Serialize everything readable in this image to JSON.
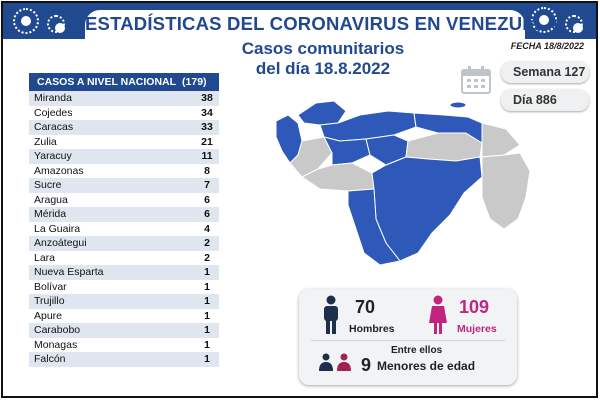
{
  "header": {
    "title": "ESTADÍSTICAS DEL CORONAVIRUS EN VENEZUELA",
    "date": "FECHA 18/8/2022"
  },
  "subtitle": {
    "line1": "Casos comunitarios",
    "line2": "del día 18.8.2022"
  },
  "table": {
    "heading": "CASOS A NIVEL NACIONAL",
    "total": "(179)",
    "rows": [
      {
        "state": "Miranda",
        "value": "38"
      },
      {
        "state": "Cojedes",
        "value": "34"
      },
      {
        "state": "Caracas",
        "value": "33"
      },
      {
        "state": "Zulia",
        "value": "21"
      },
      {
        "state": "Yaracuy",
        "value": "11"
      },
      {
        "state": "Amazonas",
        "value": "8"
      },
      {
        "state": "Sucre",
        "value": "7"
      },
      {
        "state": "Aragua",
        "value": "6"
      },
      {
        "state": "Mérida",
        "value": "6"
      },
      {
        "state": "La Guaira",
        "value": "4"
      },
      {
        "state": "Anzoátegui",
        "value": "2"
      },
      {
        "state": "Lara",
        "value": "2"
      },
      {
        "state": "Nueva Esparta",
        "value": "1"
      },
      {
        "state": "Bolívar",
        "value": "1"
      },
      {
        "state": "Trujillo",
        "value": "1"
      },
      {
        "state": "Apure",
        "value": "1"
      },
      {
        "state": "Carabobo",
        "value": "1"
      },
      {
        "state": "Monagas",
        "value": "1"
      },
      {
        "state": "Falcón",
        "value": "1"
      }
    ]
  },
  "info": {
    "week": "Semana 127",
    "day": "Día 886"
  },
  "stats": {
    "men_count": "70",
    "men_label": "Hombres",
    "women_count": "109",
    "women_label": "Mujeres",
    "minors_intro": "Entre ellos",
    "minors_count": "9",
    "minors_label": "Menores de edad"
  },
  "colors": {
    "primary": "#21498f",
    "map_active": "#2f59b8",
    "map_inactive": "#c9c9c9",
    "women": "#c0267e",
    "men": "#1e2f4d"
  },
  "icons": [
    "virus-icon",
    "calendar-icon",
    "man-icon",
    "woman-icon",
    "children-icon"
  ]
}
